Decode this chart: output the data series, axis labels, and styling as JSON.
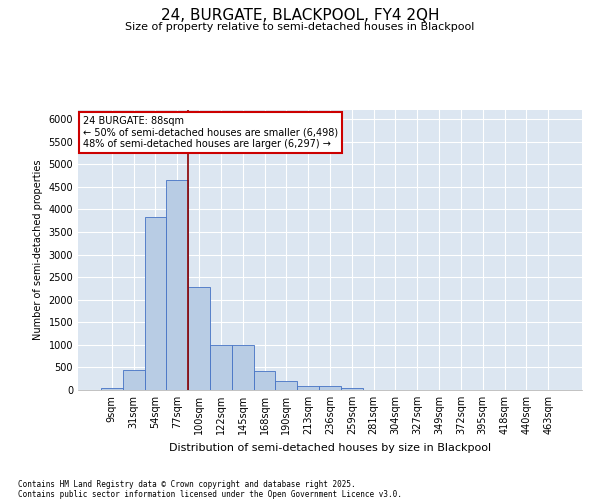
{
  "title": "24, BURGATE, BLACKPOOL, FY4 2QH",
  "subtitle": "Size of property relative to semi-detached houses in Blackpool",
  "xlabel": "Distribution of semi-detached houses by size in Blackpool",
  "ylabel": "Number of semi-detached properties",
  "footnote": "Contains HM Land Registry data © Crown copyright and database right 2025.\nContains public sector information licensed under the Open Government Licence v3.0.",
  "bar_labels": [
    "9sqm",
    "31sqm",
    "54sqm",
    "77sqm",
    "100sqm",
    "122sqm",
    "145sqm",
    "168sqm",
    "190sqm",
    "213sqm",
    "236sqm",
    "259sqm",
    "281sqm",
    "304sqm",
    "327sqm",
    "349sqm",
    "372sqm",
    "395sqm",
    "418sqm",
    "440sqm",
    "463sqm"
  ],
  "bar_values": [
    50,
    450,
    3820,
    4660,
    2290,
    1000,
    1000,
    420,
    195,
    90,
    90,
    50,
    0,
    0,
    0,
    0,
    0,
    0,
    0,
    0,
    0
  ],
  "bar_color": "#b8cce4",
  "bar_edge_color": "#4472c4",
  "background_color": "#dce6f1",
  "vline_color": "#8b0000",
  "annotation_text": "24 BURGATE: 88sqm\n← 50% of semi-detached houses are smaller (6,498)\n48% of semi-detached houses are larger (6,297) →",
  "annotation_box_color": "white",
  "annotation_box_edge_color": "#cc0000",
  "ylim": [
    0,
    6200
  ],
  "yticks": [
    0,
    500,
    1000,
    1500,
    2000,
    2500,
    3000,
    3500,
    4000,
    4500,
    5000,
    5500,
    6000
  ],
  "title_fontsize": 11,
  "subtitle_fontsize": 8,
  "ylabel_fontsize": 7,
  "xlabel_fontsize": 8,
  "tick_fontsize": 7,
  "annot_fontsize": 7,
  "footnote_fontsize": 5.5
}
